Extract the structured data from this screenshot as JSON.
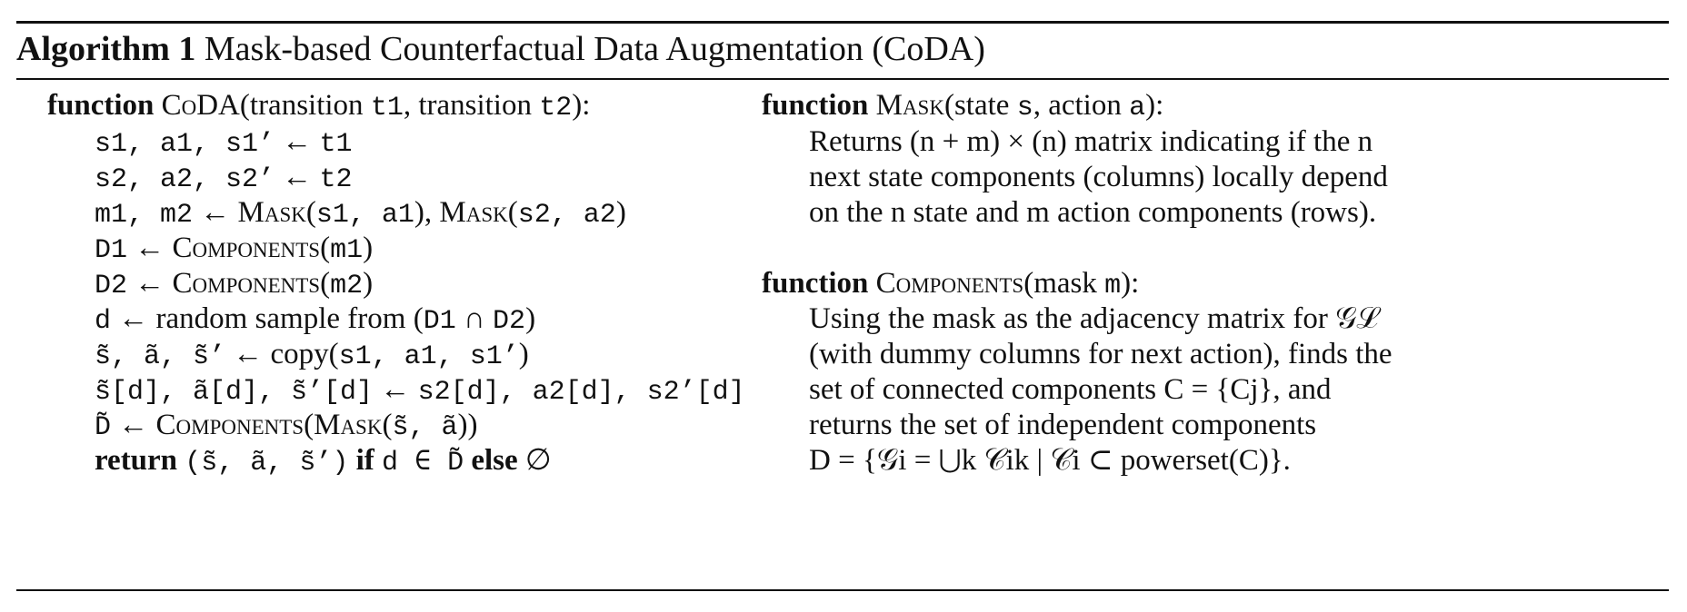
{
  "caption": {
    "label": "Algorithm 1",
    "title": "Mask-based Counterfactual Data Augmentation (CoDA)"
  },
  "coda": {
    "kw_function": "function",
    "name": "CoDA",
    "sig_open": "(transition ",
    "arg1": "t1",
    "sig_mid": ", transition ",
    "arg2": "t2",
    "sig_close": "):",
    "lines": [
      "s1, a1, s1’ ← t1",
      "s2, a2, s2’ ← t2",
      "m1, m2 ← Mask(s1, a1), Mask(s2, a2)",
      "D1 ← Components(m1)",
      "D2 ← Components(m2)",
      "d ← random sample from (D1 ∩ D2)",
      "s̃, ã, s̃’ ← copy(s1, a1, s1’)",
      "s̃[d], ã[d], s̃’[d] ← s2[d], a2[d], s2’[d]",
      "D̃ ← Components(Mask(s̃, ã))"
    ],
    "ret": {
      "kw_return": "return",
      "tuple": "(s̃, ã, s̃’)",
      "kw_if": "if",
      "cond": "d ∈ D̃",
      "kw_else": "else",
      "empty": "∅"
    }
  },
  "mask_fn": {
    "kw_function": "function",
    "name": "Mask",
    "sig_open": "(state ",
    "arg1": "s",
    "sig_mid": ", action ",
    "arg2": "a",
    "sig_close": "):",
    "desc": [
      "Returns (n + m) × (n) matrix indicating if the n",
      "next state components (columns) locally depend",
      "on the n state and m action components (rows)."
    ]
  },
  "components_fn": {
    "kw_function": "function",
    "name": "Components",
    "sig_open": "(mask ",
    "arg1": "m",
    "sig_close": "):",
    "desc": [
      "Using the mask as the adjacency matrix for 𝒢ℒ",
      "(with dummy columns for next action), finds the",
      "set of connected components C = {Cj}, and",
      "returns the set of independent components",
      "D = {𝒢i = ⋃k 𝒞ik | 𝒞i ⊂ powerset(C)}."
    ]
  }
}
